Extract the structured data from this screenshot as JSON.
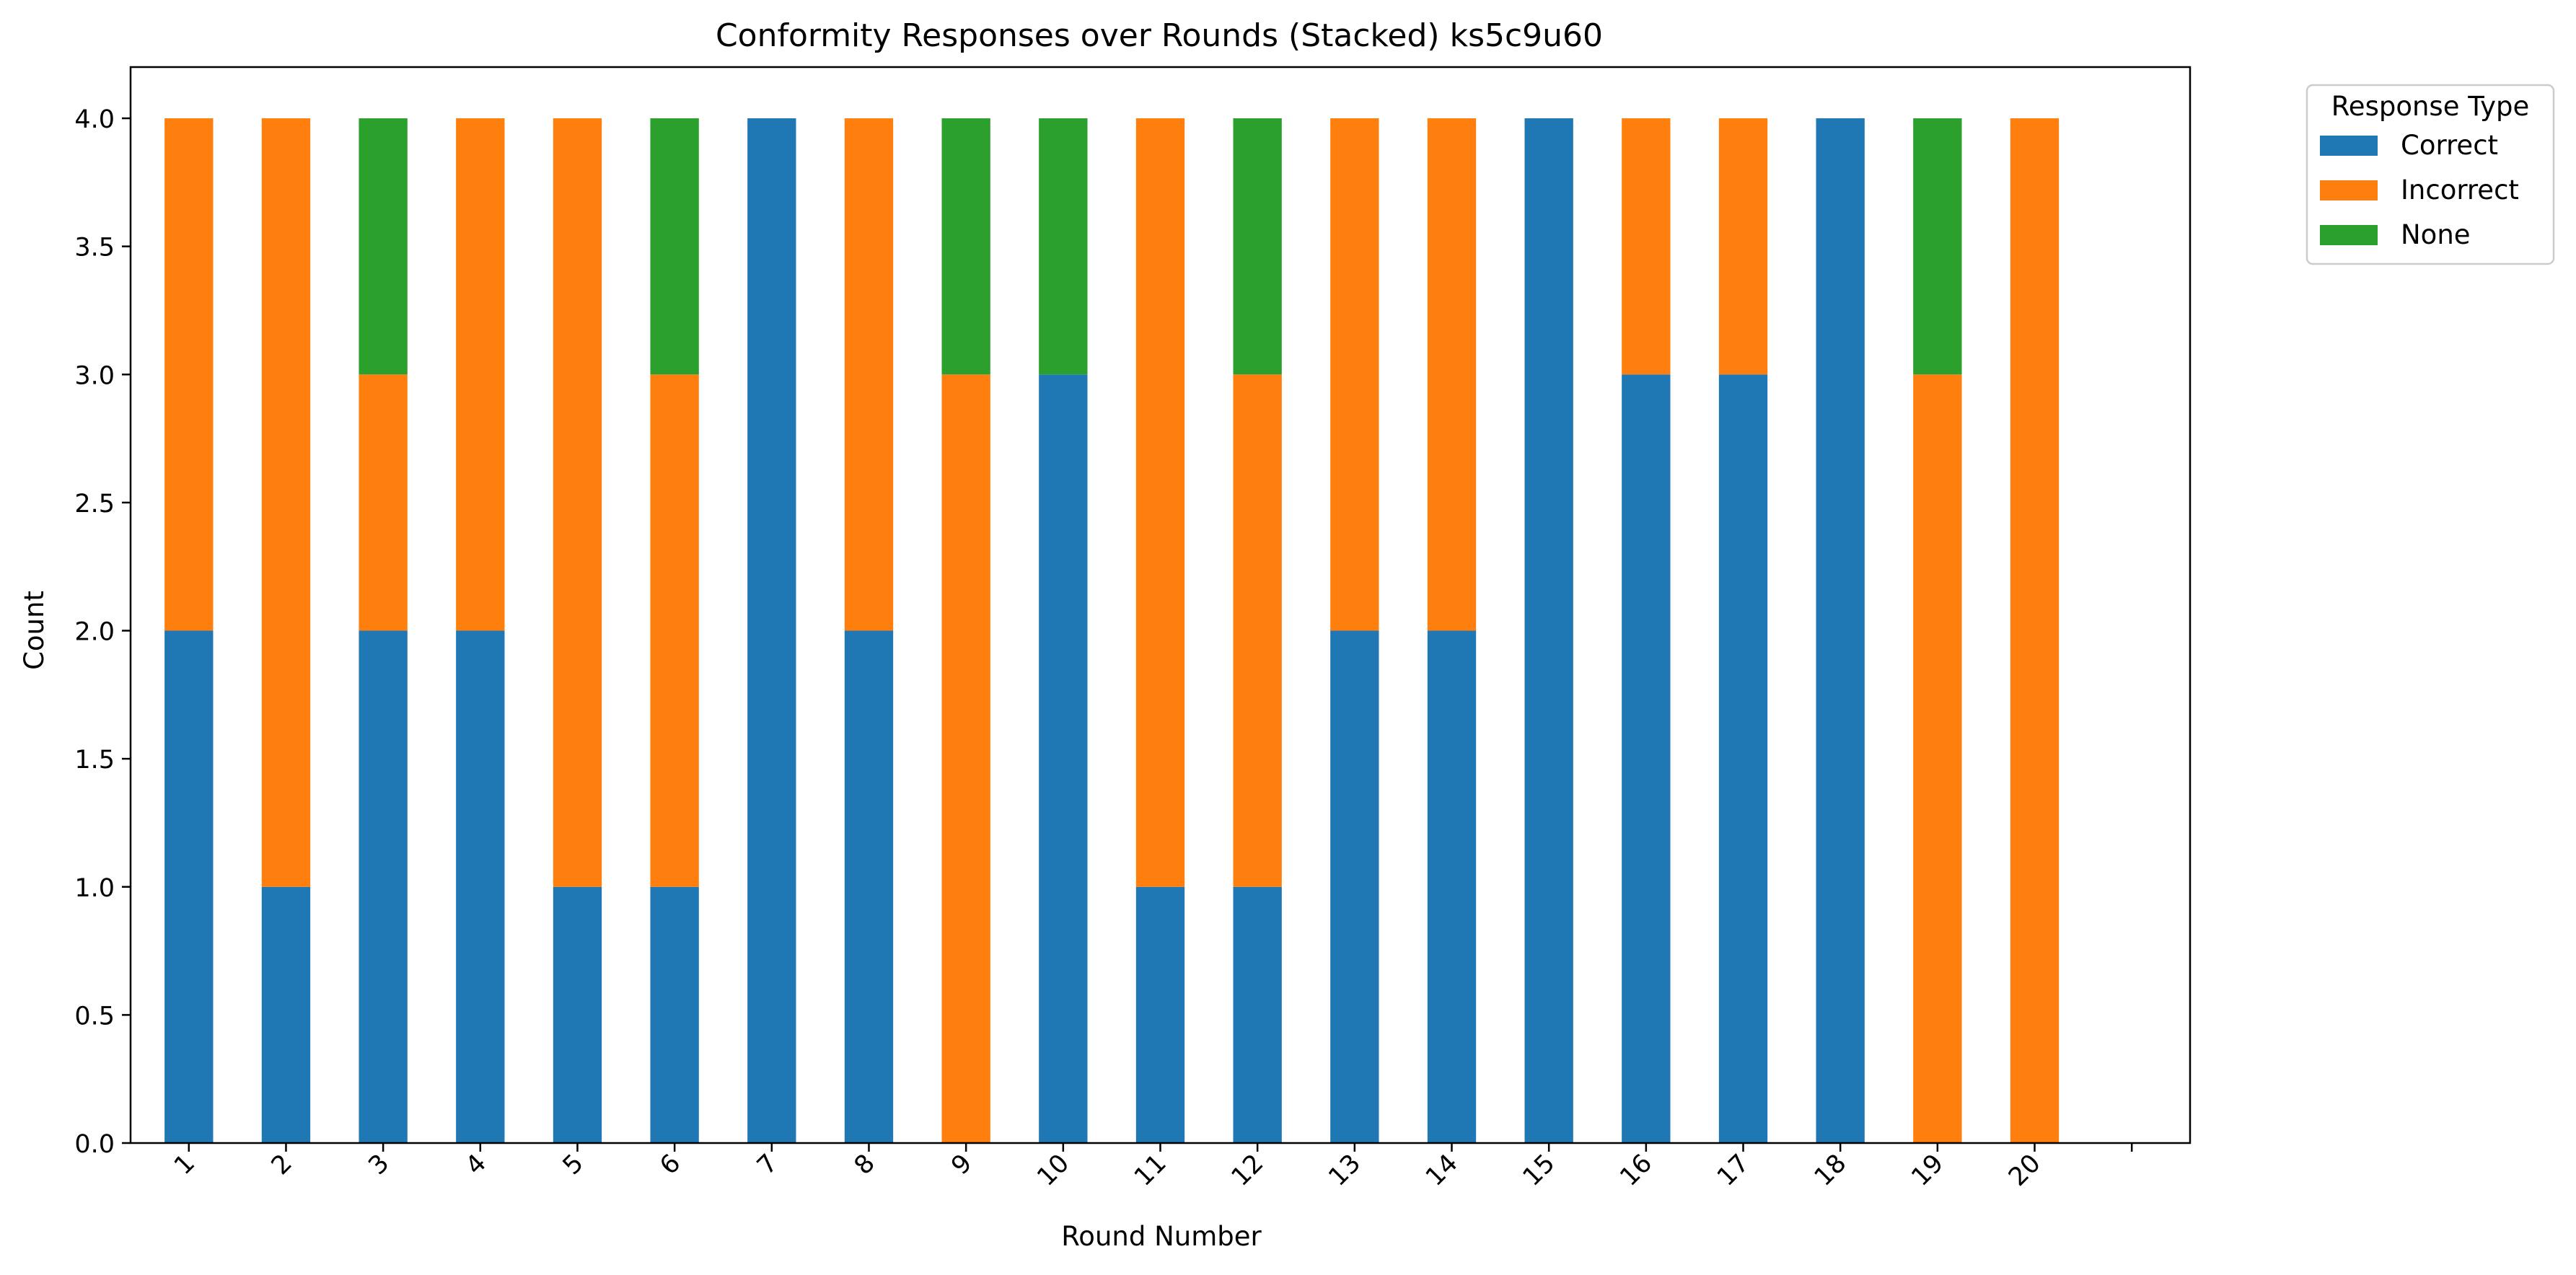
{
  "chart_data": {
    "type": "bar",
    "stacked": true,
    "title": "Conformity Responses over Rounds (Stacked) ks5c9u60",
    "xlabel": "Round Number",
    "ylabel": "Count",
    "categories": [
      "1",
      "2",
      "3",
      "4",
      "5",
      "6",
      "7",
      "8",
      "9",
      "10",
      "11",
      "12",
      "13",
      "14",
      "15",
      "16",
      "17",
      "18",
      "19",
      "20"
    ],
    "series": [
      {
        "name": "Correct",
        "color": "#1f77b4",
        "values": [
          2,
          1,
          2,
          2,
          1,
          1,
          4,
          2,
          0,
          3,
          1,
          1,
          2,
          2,
          4,
          3,
          3,
          4,
          0,
          0
        ]
      },
      {
        "name": "Incorrect",
        "color": "#ff7f0e",
        "values": [
          2,
          3,
          1,
          2,
          3,
          2,
          0,
          2,
          3,
          0,
          3,
          2,
          2,
          2,
          0,
          1,
          1,
          0,
          3,
          4
        ]
      },
      {
        "name": "None",
        "color": "#2ca02c",
        "values": [
          0,
          0,
          1,
          0,
          0,
          1,
          0,
          0,
          1,
          1,
          0,
          1,
          0,
          0,
          0,
          0,
          0,
          0,
          1,
          0
        ]
      }
    ],
    "ylim": [
      0,
      4.2
    ],
    "yticks": [
      0.0,
      0.5,
      1.0,
      1.5,
      2.0,
      2.5,
      3.0,
      3.5,
      4.0
    ],
    "ytick_labels": [
      "0.0",
      "0.5",
      "1.0",
      "1.5",
      "2.0",
      "2.5",
      "3.0",
      "3.5",
      "4.0"
    ],
    "grid": false,
    "legend": {
      "title": "Response Type",
      "placement": "outside-top-right"
    }
  }
}
